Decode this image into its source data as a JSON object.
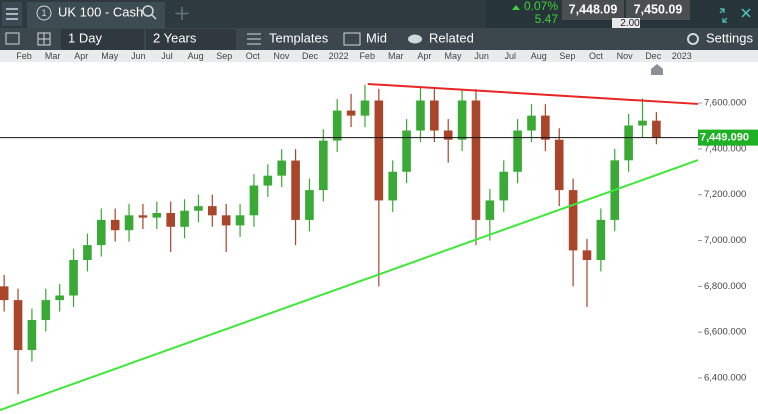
{
  "header": {
    "instrument_number": "1",
    "instrument": "UK 100 - Cash",
    "change_percent": "0.07%",
    "change_points": "5.47",
    "sell_price": "7,448.09",
    "buy_price": "7,450.09",
    "spread": "2.00"
  },
  "toolbar": {
    "interval": "1 Day",
    "range": "2 Years",
    "templates": "Templates",
    "price_type": "Mid",
    "related": "Related",
    "settings": "Settings"
  },
  "chart_data": {
    "type": "candlestick",
    "up_color": "#3aa935",
    "down_color": "#a8452a",
    "x_axis_labels": [
      "Feb",
      "Mar",
      "Apr",
      "May",
      "Jun",
      "Jul",
      "Aug",
      "Sep",
      "Oct",
      "Nov",
      "Dec",
      "2022",
      "Feb",
      "Mar",
      "Apr",
      "May",
      "Jun",
      "Jul",
      "Aug",
      "Sep",
      "Oct",
      "Nov",
      "Dec",
      "2023"
    ],
    "xlim": [
      -0.3,
      50
    ],
    "ohlc": [
      [
        6800,
        6850,
        6690,
        6740
      ],
      [
        6740,
        6790,
        6330,
        6522
      ],
      [
        6522,
        6703,
        6472,
        6653
      ],
      [
        6653,
        6790,
        6603,
        6740
      ],
      [
        6740,
        6810,
        6690,
        6760
      ],
      [
        6760,
        6965,
        6710,
        6915
      ],
      [
        6915,
        7030,
        6865,
        6980
      ],
      [
        6980,
        7140,
        6930,
        7090
      ],
      [
        7090,
        7140,
        6995,
        7045
      ],
      [
        7045,
        7160,
        6995,
        7110
      ],
      [
        7110,
        7160,
        7050,
        7100
      ],
      [
        7100,
        7170,
        7050,
        7120
      ],
      [
        7120,
        7170,
        6950,
        7060
      ],
      [
        7060,
        7180,
        7010,
        7130
      ],
      [
        7130,
        7200,
        7080,
        7150
      ],
      [
        7150,
        7200,
        7060,
        7110
      ],
      [
        7110,
        7160,
        6950,
        7066
      ],
      [
        7066,
        7160,
        7016,
        7110
      ],
      [
        7110,
        7290,
        7060,
        7240
      ],
      [
        7240,
        7333,
        7190,
        7283
      ],
      [
        7283,
        7399,
        7233,
        7349
      ],
      [
        7349,
        7399,
        6980,
        7090
      ],
      [
        7090,
        7270,
        7040,
        7220
      ],
      [
        7220,
        7486,
        7170,
        7436
      ],
      [
        7436,
        7617,
        7386,
        7567
      ],
      [
        7567,
        7640,
        7495,
        7545
      ],
      [
        7545,
        7680,
        7495,
        7611
      ],
      [
        7611,
        7661,
        6800,
        7175
      ],
      [
        7175,
        7350,
        7125,
        7300
      ],
      [
        7300,
        7530,
        7250,
        7480
      ],
      [
        7480,
        7670,
        7430,
        7611
      ],
      [
        7611,
        7661,
        7430,
        7480
      ],
      [
        7480,
        7530,
        7340,
        7440
      ],
      [
        7440,
        7660,
        7390,
        7611
      ],
      [
        7611,
        7661,
        6980,
        7090
      ],
      [
        7090,
        7225,
        7000,
        7175
      ],
      [
        7175,
        7350,
        7125,
        7300
      ],
      [
        7300,
        7530,
        7250,
        7480
      ],
      [
        7480,
        7595,
        7430,
        7545
      ],
      [
        7545,
        7595,
        7390,
        7440
      ],
      [
        7440,
        7490,
        7150,
        7220
      ],
      [
        7220,
        7270,
        6800,
        6957
      ],
      [
        6957,
        7007,
        6710,
        6915
      ],
      [
        6915,
        7140,
        6865,
        7090
      ],
      [
        7090,
        7400,
        7040,
        7350
      ],
      [
        7350,
        7552,
        7300,
        7502
      ],
      [
        7502,
        7620,
        7450,
        7523
      ],
      [
        7523,
        7560,
        7420,
        7449.09
      ]
    ],
    "ylim": [
      6243,
      7779
    ],
    "yticks": [
      {
        "value": 6400,
        "label": "6,400.000"
      },
      {
        "value": 6600,
        "label": "6,600.000"
      },
      {
        "value": 6800,
        "label": "6,800.000"
      },
      {
        "value": 7000,
        "label": "7,000.000"
      },
      {
        "value": 7200,
        "label": "7,200.000"
      },
      {
        "value": 7400,
        "label": "7,400.000"
      },
      {
        "value": 7600,
        "label": "7,600.000"
      }
    ],
    "last_price": {
      "value": 7449.09,
      "label": "7,449.090",
      "color": "#1fb125"
    },
    "trendlines": [
      {
        "color": "#e82424",
        "x": [
          26.2,
          50
        ],
        "values": [
          7683,
          7596
        ]
      },
      {
        "color": "#3ee83a",
        "x": [
          -0.3,
          50
        ],
        "values": [
          6260,
          7351
        ]
      }
    ]
  }
}
